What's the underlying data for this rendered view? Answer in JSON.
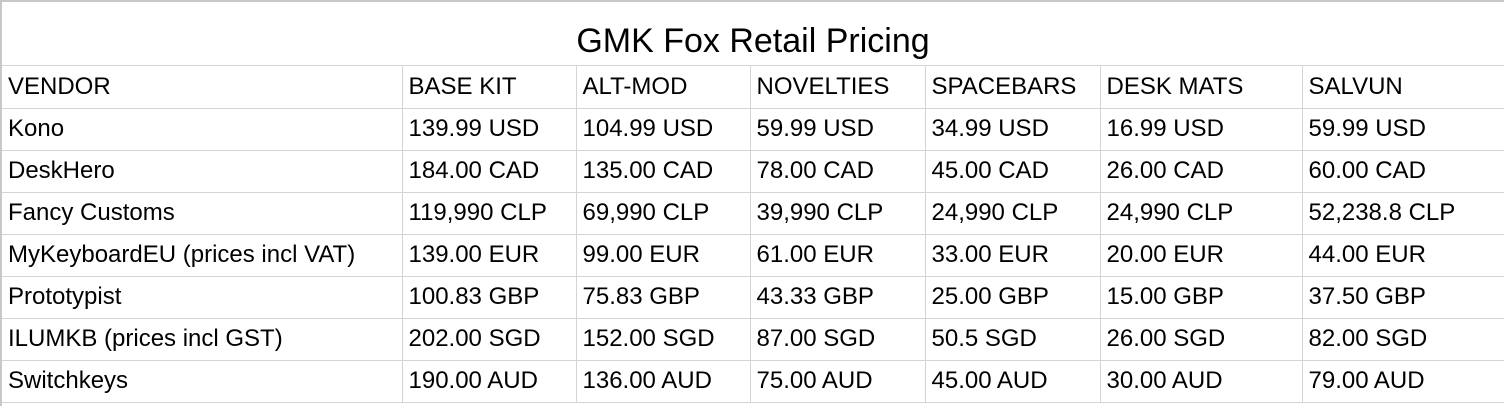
{
  "title": "GMK Fox Retail Pricing",
  "headers": [
    "VENDOR",
    "BASE KIT",
    "ALT-MOD",
    "NOVELTIES",
    "SPACEBARS",
    "DESK MATS",
    "SALVUN"
  ],
  "rows": [
    [
      "Kono",
      "139.99 USD",
      "104.99 USD",
      "59.99 USD",
      "34.99 USD",
      "16.99 USD",
      "59.99 USD"
    ],
    [
      "DeskHero",
      "184.00 CAD",
      "135.00 CAD",
      "78.00 CAD",
      "45.00 CAD",
      "26.00 CAD",
      "60.00 CAD"
    ],
    [
      "Fancy Customs",
      "119,990 CLP",
      "69,990 CLP",
      "39,990 CLP",
      "24,990 CLP",
      "24,990 CLP",
      "52,238.8 CLP"
    ],
    [
      "MyKeyboardEU (prices incl VAT)",
      "139.00 EUR",
      "99.00 EUR",
      "61.00 EUR",
      "33.00 EUR",
      "20.00 EUR",
      "44.00 EUR"
    ],
    [
      "Prototypist",
      "100.83 GBP",
      "75.83 GBP",
      "43.33 GBP",
      "25.00 GBP",
      "15.00 GBP",
      "37.50 GBP"
    ],
    [
      "ILUMKB (prices incl GST)",
      "202.00 SGD",
      "152.00 SGD",
      "87.00 SGD",
      "50.5 SGD",
      "26.00 SGD",
      "82.00 SGD"
    ],
    [
      "Switchkeys",
      "190.00 AUD",
      "136.00 AUD",
      "75.00 AUD",
      "45.00 AUD",
      "30.00 AUD",
      "79.00 AUD"
    ]
  ]
}
